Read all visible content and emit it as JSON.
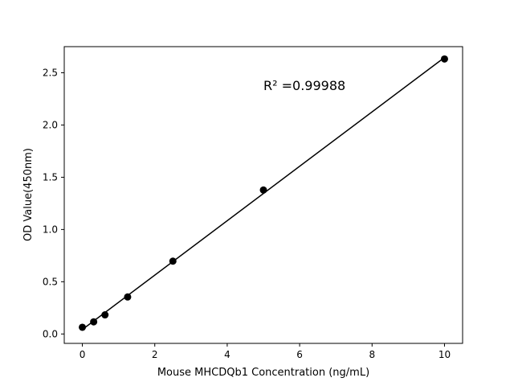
{
  "chart_data": {
    "type": "scatter",
    "title": "",
    "xlabel": "Mouse MHCDQb1 Concentration (ng/mL)",
    "ylabel": "OD Value(450nm)",
    "xlim": [
      -0.5,
      10.5
    ],
    "ylim": [
      -0.09,
      2.75
    ],
    "xticks": [
      0,
      2,
      4,
      6,
      8,
      10
    ],
    "xtick_labels": [
      "0",
      "2",
      "4",
      "6",
      "8",
      "10"
    ],
    "yticks": [
      0.0,
      0.5,
      1.0,
      1.5,
      2.0,
      2.5
    ],
    "ytick_labels": [
      "0.0",
      "0.5",
      "1.0",
      "1.5",
      "2.0",
      "2.5"
    ],
    "grid": false,
    "x": [
      0,
      0.3125,
      0.625,
      1.25,
      2.5,
      5,
      10
    ],
    "y": [
      0.064,
      0.116,
      0.183,
      0.354,
      0.697,
      1.378,
      2.632
    ],
    "fit": "linear",
    "annotation": {
      "text": "R² =0.99988",
      "x": 5,
      "y": 2.38
    },
    "marker_color": "#000000",
    "line_color": "#000000"
  }
}
